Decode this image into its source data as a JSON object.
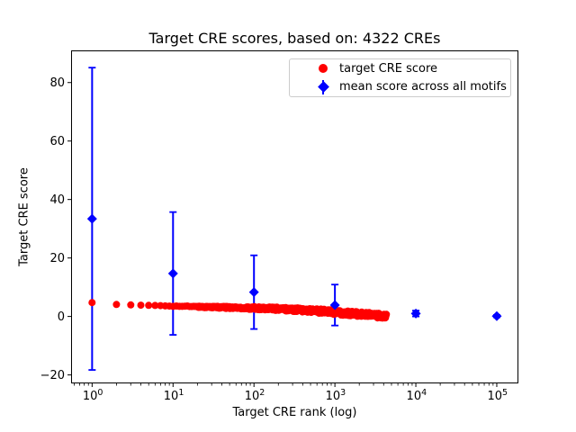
{
  "chart_data": {
    "type": "scatter",
    "title": "Target CRE scores, based on: 4322 CREs",
    "xlabel": "Target CRE rank (log)",
    "ylabel": "Target CRE score",
    "x_scale": "log",
    "xlim": [
      0.55,
      185000
    ],
    "ylim": [
      -22.9,
      91.0
    ],
    "x_tick_exponents": [
      0,
      1,
      2,
      3,
      4,
      5
    ],
    "y_ticks": [
      -20,
      0,
      20,
      40,
      60,
      80
    ],
    "grid": false,
    "n_cres": 4322,
    "series": [
      {
        "name": "target CRE score",
        "color": "#ff0000",
        "marker": "circle",
        "n_points": 4322,
        "points_sampled": {
          "rank": [
            1,
            2,
            3,
            4,
            5,
            7,
            10,
            15,
            20,
            30,
            50,
            70,
            100,
            150,
            200,
            300,
            500,
            700,
            1000,
            1500,
            2000,
            3000,
            4322
          ],
          "score": [
            4.75,
            4.1,
            3.95,
            3.85,
            3.8,
            3.7,
            3.55,
            3.42,
            3.32,
            3.2,
            3.05,
            2.95,
            2.85,
            2.72,
            2.6,
            2.4,
            2.05,
            1.75,
            1.4,
            1.05,
            0.8,
            0.45,
            0.0
          ]
        }
      },
      {
        "name": "mean score across all motifs",
        "color": "#0000ff",
        "marker": "diamond",
        "points": [
          {
            "rank": 1,
            "mean": 33.4,
            "err": 51.7
          },
          {
            "rank": 10,
            "mean": 14.7,
            "err": 21.0
          },
          {
            "rank": 100,
            "mean": 8.3,
            "err": 12.6
          },
          {
            "rank": 1000,
            "mean": 3.9,
            "err": 7.0
          },
          {
            "rank": 10000,
            "mean": 1.0,
            "err": 1.0
          },
          {
            "rank": 100000,
            "mean": 0.1,
            "err": 0.4
          }
        ]
      }
    ],
    "legend": {
      "position": "upper right",
      "entries": [
        {
          "label": "target CRE score",
          "marker": "red-circle"
        },
        {
          "label": "mean score across all motifs",
          "marker": "blue-diamond-errorbar"
        }
      ]
    }
  }
}
